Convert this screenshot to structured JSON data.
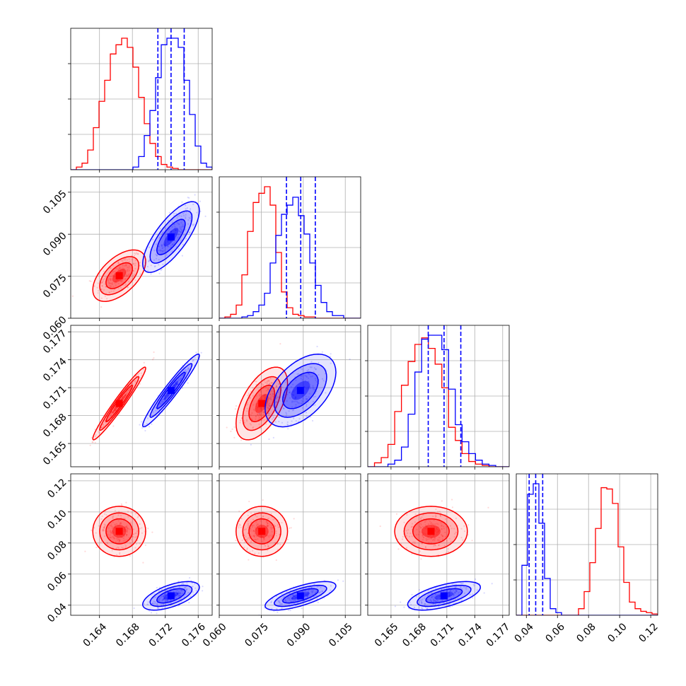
{
  "chart_data": {
    "type": "corner",
    "title": "",
    "parameters": [
      "",
      "",
      "",
      ""
    ],
    "grid": true,
    "colors": {
      "red": "#ff0000",
      "blue": "#0000ff"
    },
    "axes": {
      "p0": {
        "lim": [
          0.1605,
          0.1777
        ],
        "ticks": [
          "0.164",
          "0.168",
          "0.172",
          "0.176"
        ]
      },
      "p1": {
        "lim": [
          0.06,
          0.1105
        ],
        "ticks": [
          "0.060",
          "0.075",
          "0.090",
          "0.105"
        ]
      },
      "p2": {
        "lim": [
          0.1625,
          0.1777
        ],
        "ticks": [
          "0.165",
          "0.168",
          "0.171",
          "0.174",
          "0.177"
        ]
      },
      "p3": {
        "lim": [
          0.0335,
          0.1245
        ],
        "ticks": [
          "0.04",
          "0.06",
          "0.08",
          "0.10",
          "0.12"
        ]
      }
    },
    "series": [
      {
        "color": "red",
        "mean": [
          0.1664,
          0.0752,
          0.1693,
          0.0875
        ],
        "sd": [
          0.0014,
          0.004,
          0.0017,
          0.007
        ],
        "corr": {
          "0-1": 0.55,
          "0-2": 0.97,
          "1-2": 0.55,
          "0-3": 0.0,
          "1-3": 0.0,
          "2-3": 0.0
        },
        "hist": {
          "p0": {
            "edges": [
              0.1605,
              0.1777
            ],
            "counts": [
              0,
              0.02,
              0.05,
              0.15,
              0.32,
              0.52,
              0.68,
              0.88,
              0.95,
              1.0,
              0.93,
              0.78,
              0.55,
              0.35,
              0.2,
              0.1,
              0.04,
              0.02,
              0.01,
              0,
              0,
              0,
              0,
              0,
              0
            ]
          },
          "p1": {
            "edges": [
              0.06,
              0.1105
            ],
            "counts": [
              0,
              0.01,
              0.03,
              0.1,
              0.33,
              0.66,
              0.88,
              0.95,
              1.0,
              0.86,
              0.5,
              0.2,
              0.08,
              0.03,
              0.02,
              0.01,
              0.01,
              0,
              0,
              0,
              0,
              0,
              0,
              0,
              0
            ]
          },
          "p2": {
            "edges": [
              0.1625,
              0.1777
            ],
            "counts": [
              0,
              0.03,
              0.07,
              0.17,
              0.42,
              0.62,
              0.8,
              0.93,
              0.98,
              0.9,
              0.78,
              0.6,
              0.3,
              0.2,
              0.1,
              0.04,
              0.02,
              0.01,
              0,
              0,
              0
            ]
          },
          "p3": {
            "edges": [
              0.0335,
              0.1245
            ],
            "counts": [
              0,
              0,
              0,
              0,
              0,
              0,
              0,
              0,
              0,
              0,
              0,
              0.05,
              0.18,
              0.4,
              0.66,
              0.97,
              0.96,
              0.85,
              0.52,
              0.25,
              0.1,
              0.05,
              0.03,
              0.02,
              0.01
            ]
          }
        }
      },
      {
        "color": "blue",
        "mean": [
          0.1727,
          0.089,
          0.1707,
          0.046
        ],
        "sd": [
          0.0015,
          0.0055,
          0.0017,
          0.004
        ],
        "corr": {
          "0-1": 0.75,
          "0-2": 0.96,
          "1-2": 0.5,
          "0-3": 0.6,
          "1-3": 0.7,
          "2-3": 0.6
        },
        "quantiles": {
          "p0": [
            0.1711,
            0.1727,
            0.1743
          ],
          "p1": [
            0.084,
            0.0891,
            0.0943
          ],
          "p2": [
            0.169,
            0.1707,
            0.1725
          ],
          "p3": [
            0.0418,
            0.046,
            0.0505
          ]
        },
        "hist": {
          "p0": {
            "edges": [
              0.1605,
              0.1777
            ],
            "counts": [
              0,
              0,
              0,
              0,
              0,
              0,
              0,
              0,
              0,
              0,
              0,
              0.02,
              0.1,
              0.26,
              0.45,
              0.7,
              0.95,
              1.0,
              1.0,
              0.93,
              0.68,
              0.42,
              0.18,
              0.05,
              0.02
            ]
          },
          "p1": {
            "edges": [
              0.06,
              0.1105
            ],
            "counts": [
              0,
              0,
              0,
              0,
              0.01,
              0.02,
              0.05,
              0.1,
              0.19,
              0.42,
              0.63,
              0.79,
              0.86,
              0.92,
              0.78,
              0.64,
              0.42,
              0.25,
              0.12,
              0.05,
              0.02,
              0.02,
              0,
              0,
              0
            ]
          },
          "p2": {
            "edges": [
              0.1625,
              0.1777
            ],
            "counts": [
              0,
              0,
              0,
              0.02,
              0.05,
              0.15,
              0.4,
              0.72,
              0.97,
              1.0,
              1.0,
              0.89,
              0.59,
              0.32,
              0.19,
              0.1,
              0.05,
              0.02,
              0.01,
              0,
              0
            ]
          },
          "p3": {
            "edges": [
              0.0335,
              0.1245
            ],
            "counts": [
              0,
              0.38,
              0.92,
              1.0,
              0.7,
              0.28,
              0.05,
              0.02,
              0,
              0,
              0,
              0,
              0,
              0,
              0,
              0,
              0,
              0,
              0,
              0,
              0,
              0,
              0,
              0,
              0
            ]
          }
        }
      }
    ]
  }
}
